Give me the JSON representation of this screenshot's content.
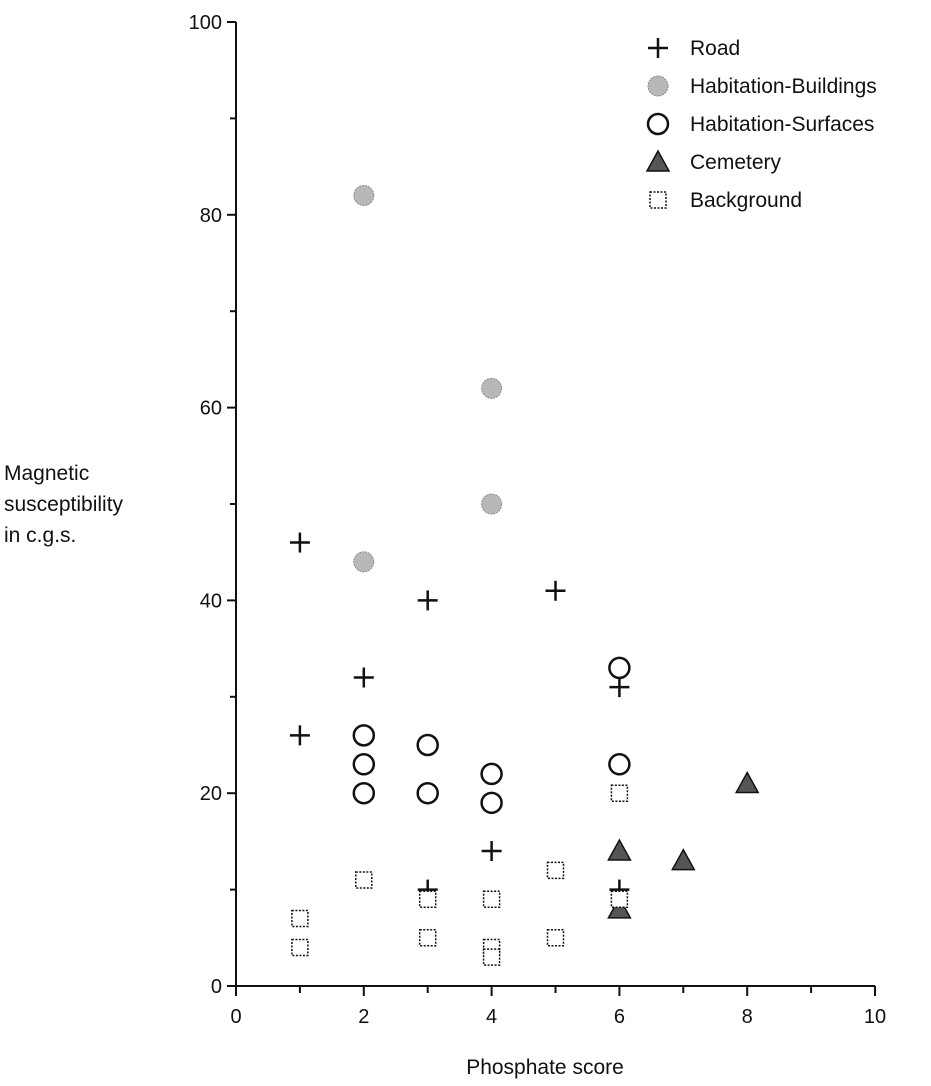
{
  "chart_data": {
    "type": "scatter",
    "xlabel": "Phosphate score",
    "ylabel_lines": [
      "Magnetic",
      "susceptibility",
      "in c.g.s."
    ],
    "xlim": [
      0,
      10
    ],
    "ylim": [
      0,
      100
    ],
    "x_ticks": [
      0,
      2,
      4,
      6,
      8,
      10
    ],
    "y_ticks": [
      0,
      20,
      40,
      60,
      80,
      100
    ],
    "legend_position": "top-right",
    "series": [
      {
        "name": "Road",
        "marker": "plus",
        "color": "#111111",
        "points": [
          [
            1,
            46
          ],
          [
            1,
            26
          ],
          [
            2,
            32
          ],
          [
            3,
            40
          ],
          [
            3,
            10
          ],
          [
            4,
            14
          ],
          [
            5,
            41
          ],
          [
            6,
            31
          ],
          [
            6,
            10
          ]
        ]
      },
      {
        "name": "Habitation-Buildings",
        "marker": "filled-circle",
        "color": "#b8b8b8",
        "points": [
          [
            2,
            82
          ],
          [
            2,
            44
          ],
          [
            4,
            62
          ],
          [
            4,
            50
          ]
        ]
      },
      {
        "name": "Habitation-Surfaces",
        "marker": "open-circle",
        "color": "#111111",
        "points": [
          [
            2,
            26
          ],
          [
            2,
            23
          ],
          [
            2,
            20
          ],
          [
            3,
            25
          ],
          [
            3,
            20
          ],
          [
            4,
            22
          ],
          [
            4,
            19
          ],
          [
            6,
            33
          ],
          [
            6,
            23
          ]
        ]
      },
      {
        "name": "Cemetery",
        "marker": "triangle",
        "color": "#555555",
        "points": [
          [
            6,
            14
          ],
          [
            6,
            8
          ],
          [
            7,
            13
          ],
          [
            8,
            21
          ]
        ]
      },
      {
        "name": "Background",
        "marker": "open-square",
        "color": "#111111",
        "points": [
          [
            1,
            7
          ],
          [
            1,
            4
          ],
          [
            2,
            11
          ],
          [
            3,
            9
          ],
          [
            3,
            5
          ],
          [
            4,
            9
          ],
          [
            4,
            4
          ],
          [
            4,
            3
          ],
          [
            5,
            12
          ],
          [
            5,
            5
          ],
          [
            6,
            20
          ],
          [
            6,
            9
          ]
        ]
      }
    ]
  }
}
